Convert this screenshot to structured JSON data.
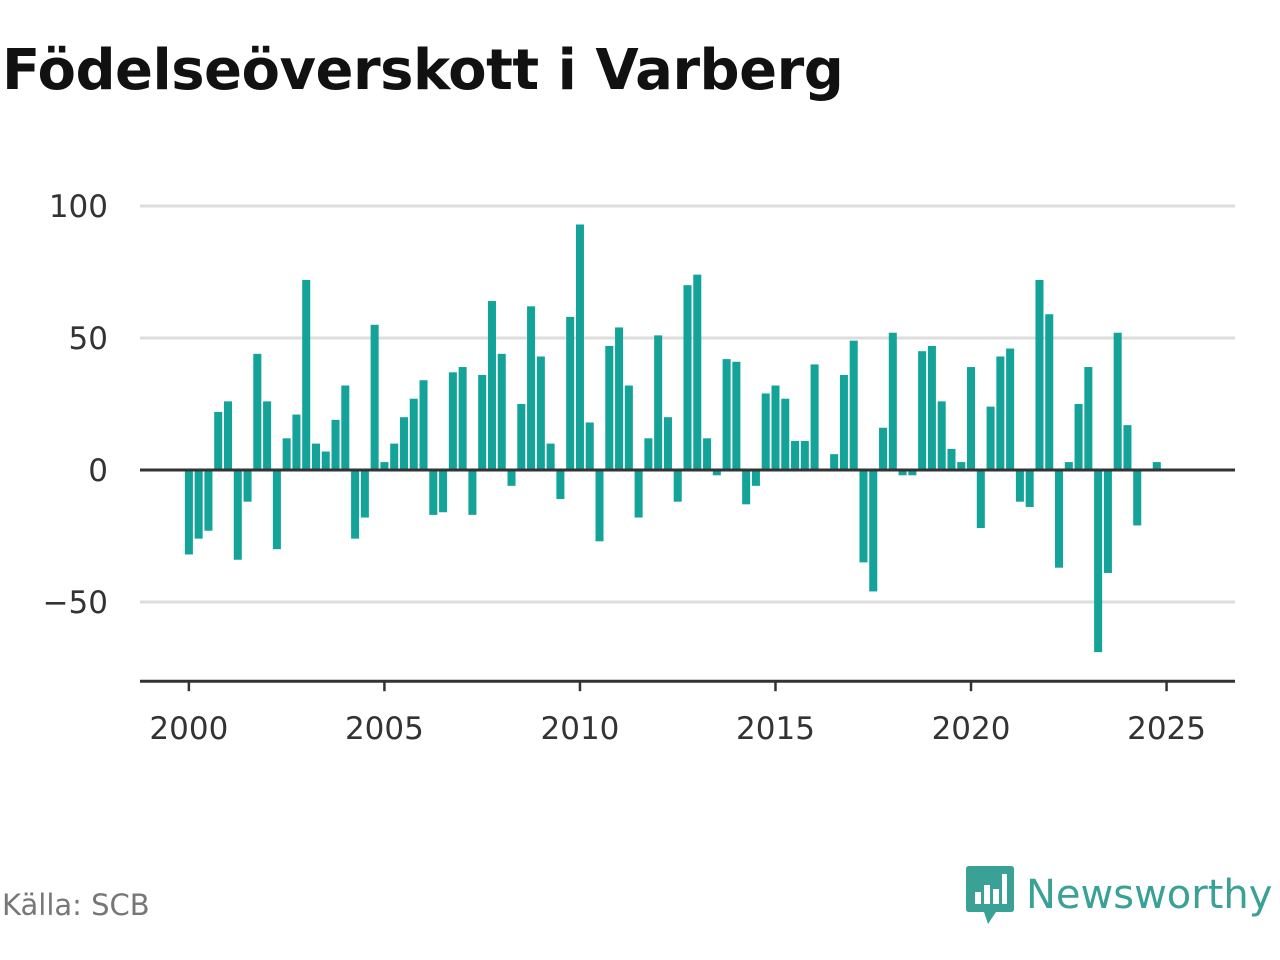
{
  "title": "Födelseöverskott i Varberg",
  "source": "Källa: SCB",
  "logo": {
    "text": "Newsworthy",
    "icon": "newsworthy-chart-bubble-icon"
  },
  "colors": {
    "bar": "#13a399",
    "grid": "#dddddd",
    "zero_line": "#333333",
    "axis": "#333333",
    "brand": "#3aa197"
  },
  "chart_data": {
    "type": "bar",
    "title": "Födelseöverskott i Varberg",
    "xlabel": "",
    "ylabel": "",
    "frequency": "quarterly",
    "x_start": 2000,
    "xlim": [
      1998.75,
      2026.75
    ],
    "ylim": [
      -80,
      100
    ],
    "yticks": [
      100,
      50,
      0,
      -50
    ],
    "ytick_labels": [
      "100",
      "50",
      "0",
      "−50"
    ],
    "xticks": [
      2000,
      2005,
      2010,
      2015,
      2020,
      2025
    ],
    "xtick_labels": [
      "2000",
      "2005",
      "2010",
      "2015",
      "2020",
      "2025"
    ],
    "grid": true,
    "values": [
      -32,
      -26,
      -23,
      22,
      26,
      -34,
      -12,
      44,
      26,
      -30,
      12,
      21,
      72,
      10,
      7,
      19,
      32,
      -26,
      -18,
      55,
      3,
      10,
      20,
      27,
      34,
      -17,
      -16,
      37,
      39,
      -17,
      36,
      64,
      44,
      -6,
      25,
      62,
      43,
      10,
      -11,
      58,
      93,
      18,
      -27,
      47,
      54,
      32,
      -18,
      12,
      51,
      20,
      -12,
      70,
      74,
      12,
      -2,
      42,
      41,
      -13,
      -6,
      29,
      32,
      27,
      11,
      11,
      40,
      0,
      6,
      36,
      49,
      -35,
      -46,
      16,
      52,
      -2,
      -2,
      45,
      47,
      26,
      8,
      3,
      39,
      -22,
      24,
      43,
      46,
      -12,
      -14,
      72,
      59,
      -37,
      3,
      25,
      39,
      -69,
      -39,
      52,
      17,
      -21,
      0,
      3
    ]
  }
}
